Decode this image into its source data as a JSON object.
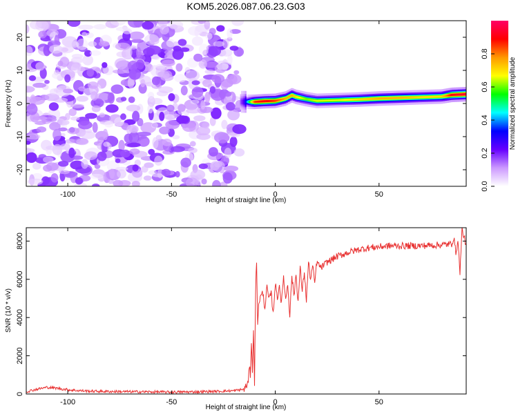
{
  "figure_title": "KOM5.2026.087.06.23.G03",
  "chart_data": [
    {
      "type": "heatmap",
      "name": "spectrogram",
      "xlabel": "Height of straight line (km)",
      "ylabel": "Frequency (Hz)",
      "xlim": [
        -120,
        92
      ],
      "ylim": [
        -25,
        25
      ],
      "x_ticks": [
        -100,
        -50,
        0,
        50
      ],
      "y_ticks": [
        -20,
        -10,
        0,
        10,
        20
      ],
      "noise_region": {
        "x": [
          -120,
          -17
        ],
        "amplitude_range": [
          0.02,
          0.2
        ]
      },
      "signal_ridge": {
        "x": [
          -17,
          -15,
          -10,
          -5,
          0,
          5,
          8,
          10,
          15,
          20,
          30,
          40,
          50,
          60,
          70,
          80,
          85,
          92
        ],
        "frequency": [
          0.5,
          0.5,
          0.5,
          0.7,
          0.8,
          1.5,
          2.5,
          2.0,
          1.3,
          0.8,
          1.0,
          1.2,
          1.5,
          1.7,
          1.9,
          2.1,
          2.6,
          2.8
        ],
        "peak_amplitude": [
          0.15,
          0.25,
          0.85,
          0.9,
          0.85,
          0.75,
          0.75,
          0.7,
          0.6,
          0.65,
          0.65,
          0.7,
          0.75,
          0.75,
          0.7,
          0.7,
          0.9,
          0.95
        ]
      },
      "colorbar": {
        "label": "Normalized spectral amplitude",
        "range": [
          0.0,
          1.0
        ],
        "ticks": [
          "0.0",
          "0.2",
          "0.4",
          "0.6",
          "0.8"
        ],
        "colors": [
          "#ffffff",
          "#cc99ff",
          "#6600ff",
          "#0000ff",
          "#00ffff",
          "#00ff00",
          "#ffff00",
          "#ff9900",
          "#ff0000",
          "#ff0066"
        ]
      }
    },
    {
      "type": "line",
      "name": "snr",
      "xlabel": "Height of straight line (km)",
      "ylabel": "SNR (10 * v/v)",
      "xlim": [
        -120,
        92
      ],
      "ylim": [
        0,
        8700
      ],
      "x_ticks": [
        -100,
        -50,
        0,
        50
      ],
      "y_ticks": [
        0,
        2000,
        4000,
        6000,
        8000
      ],
      "color": "#e83030",
      "series": [
        {
          "name": "SNR",
          "x": [
            -120,
            -115,
            -110,
            -105,
            -100,
            -95,
            -90,
            -80,
            -70,
            -60,
            -50,
            -40,
            -30,
            -20,
            -15,
            -13,
            -12.5,
            -12,
            -11.5,
            -11,
            -10.5,
            -10,
            -9.5,
            -9,
            -8.5,
            -8,
            -7,
            -6,
            -5,
            -4,
            -3,
            -2,
            -1,
            0,
            1,
            2,
            3,
            4,
            5,
            6,
            7,
            8,
            9,
            10,
            11,
            12,
            13,
            14,
            15,
            16,
            17,
            18,
            19,
            20,
            22,
            25,
            30,
            35,
            40,
            45,
            50,
            55,
            60,
            65,
            70,
            75,
            80,
            85,
            86,
            87,
            88,
            89,
            90,
            91,
            92
          ],
          "y": [
            120,
            250,
            350,
            300,
            220,
            180,
            150,
            130,
            120,
            110,
            100,
            110,
            130,
            170,
            250,
            600,
            1500,
            1000,
            2800,
            1200,
            3200,
            600,
            5400,
            7000,
            3500,
            4800,
            5100,
            5300,
            4500,
            5600,
            4900,
            5300,
            4200,
            5800,
            5000,
            5700,
            4700,
            6200,
            4900,
            5800,
            4100,
            6200,
            5100,
            6300,
            4800,
            6600,
            5400,
            6400,
            4900,
            6900,
            6000,
            6700,
            5800,
            6900,
            6600,
            6900,
            7200,
            7400,
            7550,
            7650,
            7700,
            7750,
            7750,
            7750,
            7750,
            7780,
            7800,
            7850,
            8200,
            7400,
            8000,
            6400,
            8600,
            8200,
            7800
          ]
        }
      ]
    }
  ]
}
